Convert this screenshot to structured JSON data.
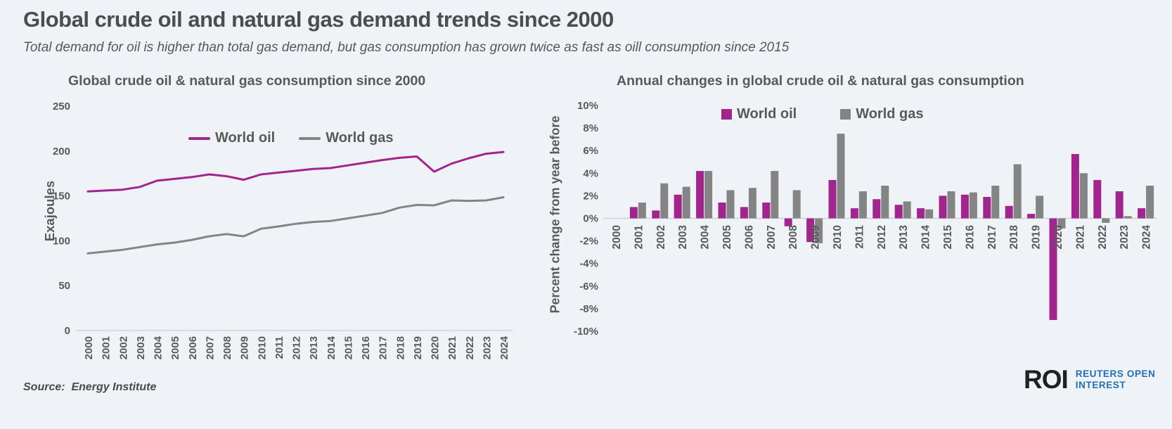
{
  "page": {
    "title": "Global crude oil and natural gas demand trends since 2000",
    "subtitle": "Total demand for oil is higher than total gas demand, but gas consumption has grown twice as fast as oill consumption since 2015",
    "source_label": "Source:  Energy Institute",
    "logo": {
      "roi": "ROI",
      "line1": "REUTERS OPEN",
      "line2": "INTEREST"
    }
  },
  "colors": {
    "background": "#EFF2F6",
    "heading": "#4D4D4D",
    "text": "#595959",
    "oil": "#A2258F",
    "gas": "#848484",
    "axis_line": "#C9CDD3",
    "logo_dark": "#212121",
    "logo_blue": "#1F70B8"
  },
  "chart_data": [
    {
      "type": "line",
      "title": "Global crude oil & natural gas consumption since 2000",
      "xlabel": "",
      "ylabel": "Exajoules",
      "ylim": [
        0,
        250
      ],
      "yticks": [
        0,
        50,
        100,
        150,
        200,
        250
      ],
      "grid": false,
      "legend_position": "top-center",
      "x": [
        2000,
        2001,
        2002,
        2003,
        2004,
        2005,
        2006,
        2007,
        2008,
        2009,
        2010,
        2011,
        2012,
        2013,
        2014,
        2015,
        2016,
        2017,
        2018,
        2019,
        2020,
        2021,
        2022,
        2023,
        2024
      ],
      "series": [
        {
          "name": "World oil",
          "color": "#A2258F",
          "values": [
            155,
            156,
            157,
            160,
            167,
            169,
            171,
            174,
            172,
            168,
            174,
            176,
            178,
            180,
            181,
            184,
            187,
            190,
            192.5,
            194,
            177,
            186,
            192,
            197,
            199
          ]
        },
        {
          "name": "World gas",
          "color": "#848484",
          "values": [
            86,
            88,
            90,
            93,
            96,
            98,
            101,
            105,
            107.5,
            105,
            113.5,
            116,
            119,
            121,
            122,
            125,
            128,
            131,
            137,
            140,
            139.5,
            145,
            144.5,
            145,
            148.5
          ]
        }
      ]
    },
    {
      "type": "bar",
      "title": "Annual changes in global crude oil & natural gas consumption",
      "xlabel": "",
      "ylabel": "Percent change from year before",
      "ylim": [
        -10,
        10
      ],
      "yticks": [
        10,
        8,
        6,
        4,
        2,
        0,
        -2,
        -4,
        -6,
        -8,
        -10
      ],
      "ytick_suffix": "%",
      "grid": false,
      "legend_position": "top-center",
      "x": [
        2000,
        2001,
        2002,
        2003,
        2004,
        2005,
        2006,
        2007,
        2008,
        2009,
        2010,
        2011,
        2012,
        2013,
        2014,
        2015,
        2016,
        2017,
        2018,
        2019,
        2020,
        2021,
        2022,
        2023,
        2024
      ],
      "series": [
        {
          "name": "World oil",
          "color": "#A2258F",
          "values": [
            0,
            1.0,
            0.7,
            2.1,
            4.2,
            1.4,
            1.0,
            1.4,
            -0.7,
            -2.1,
            3.4,
            0.9,
            1.7,
            1.2,
            0.9,
            2.0,
            2.1,
            1.9,
            1.1,
            0.4,
            -9.0,
            5.7,
            3.4,
            2.4,
            0.9
          ]
        },
        {
          "name": "World gas",
          "color": "#848484",
          "values": [
            0,
            1.4,
            3.1,
            2.8,
            4.2,
            2.5,
            2.7,
            4.2,
            2.5,
            -2.2,
            7.5,
            2.4,
            2.9,
            1.5,
            0.8,
            2.4,
            2.3,
            2.9,
            4.8,
            2.0,
            -0.9,
            4.0,
            -0.4,
            0.2,
            2.9
          ]
        }
      ]
    }
  ]
}
